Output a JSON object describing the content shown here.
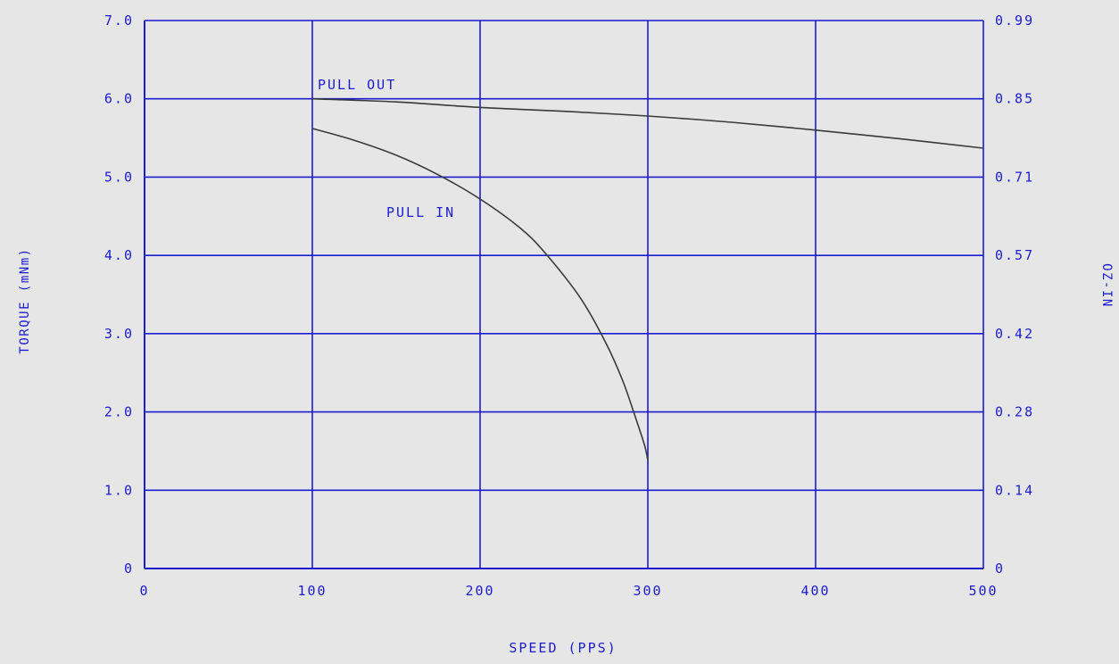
{
  "chart_data": {
    "type": "line",
    "title": "",
    "xlabel": "SPEED (PPS)",
    "ylabel": "TORQUE (mNm)",
    "y2label": "OZ-IN",
    "xlim": [
      0,
      500
    ],
    "ylim": [
      0,
      7
    ],
    "x_ticks": [
      0,
      100,
      200,
      300,
      400,
      500
    ],
    "x_tick_labels": [
      "0",
      "100",
      "200",
      "300",
      "400",
      "500"
    ],
    "y_ticks": [
      0,
      1,
      2,
      3,
      4,
      5,
      6,
      7
    ],
    "y_tick_labels": [
      "0",
      "1.0",
      "2.0",
      "3.0",
      "4.0",
      "5.0",
      "6.0",
      "7.0"
    ],
    "y2_tick_labels": [
      "0",
      "0.14",
      "0.28",
      "0.42",
      "0.57",
      "0.71",
      "0.85",
      "0.99"
    ],
    "grid": true,
    "colors": {
      "background": "#e6e6e6",
      "grid": "#1c1ccf",
      "text": "#1c1ccf",
      "curve": "#3a3a3a"
    },
    "series": [
      {
        "name": "PULL OUT",
        "x": [
          100,
          150,
          200,
          250,
          300,
          350,
          400,
          450,
          500
        ],
        "y": [
          6.0,
          5.96,
          5.89,
          5.84,
          5.78,
          5.7,
          5.6,
          5.49,
          5.37
        ]
      },
      {
        "name": "PULL IN",
        "x": [
          100,
          125,
          150,
          175,
          200,
          225,
          240,
          260,
          275,
          285,
          292,
          298,
          300
        ],
        "y": [
          5.62,
          5.47,
          5.28,
          5.03,
          4.72,
          4.33,
          4.0,
          3.45,
          2.88,
          2.4,
          1.97,
          1.58,
          1.38
        ]
      }
    ]
  }
}
